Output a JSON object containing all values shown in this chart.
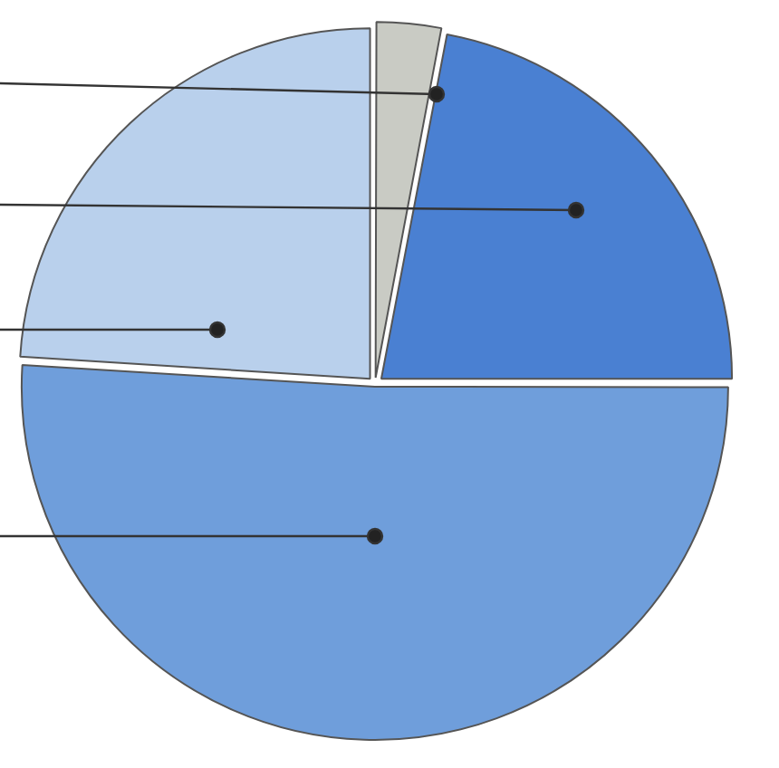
{
  "chart_data": {
    "type": "pie",
    "categories": [
      null,
      null,
      null,
      null
    ],
    "values": [
      3,
      22,
      51,
      24
    ],
    "colors": [
      "#c9cbc4",
      "#4a80d2",
      "#6f9edb",
      "#b9d0ec"
    ]
  }
}
